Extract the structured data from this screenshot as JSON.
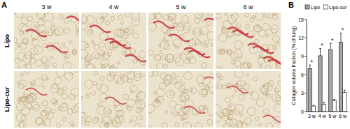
{
  "figure": {
    "panel_labels": [
      "A",
      "B"
    ],
    "image_columns": [
      "3 w",
      "4 w",
      "5 w",
      "6 w"
    ],
    "image_rows": [
      "Lipo",
      "Lipo-cur"
    ]
  },
  "chart_data": {
    "type": "bar",
    "categories": [
      "3 w",
      "4 w",
      "5 w",
      "6 w"
    ],
    "series": [
      {
        "name": "Lipo",
        "color": "#a6a6a6",
        "values": [
          7.0,
          9.1,
          10.1,
          11.3
        ],
        "errors": [
          0.6,
          1.2,
          1.0,
          1.5
        ]
      },
      {
        "name": "Lipo-cur",
        "color": "#ffffff",
        "values": [
          0.9,
          1.2,
          1.8,
          3.1
        ],
        "errors": [
          0.1,
          0.3,
          0.2,
          0.4
        ]
      }
    ],
    "y_label": "Collagen volume fraction (% of lung)",
    "ylim": [
      0,
      15
    ],
    "yticks": [
      0,
      3,
      6,
      9,
      12,
      15
    ],
    "legend": "top",
    "annotations": [
      "*",
      "*",
      "*",
      "*"
    ]
  }
}
